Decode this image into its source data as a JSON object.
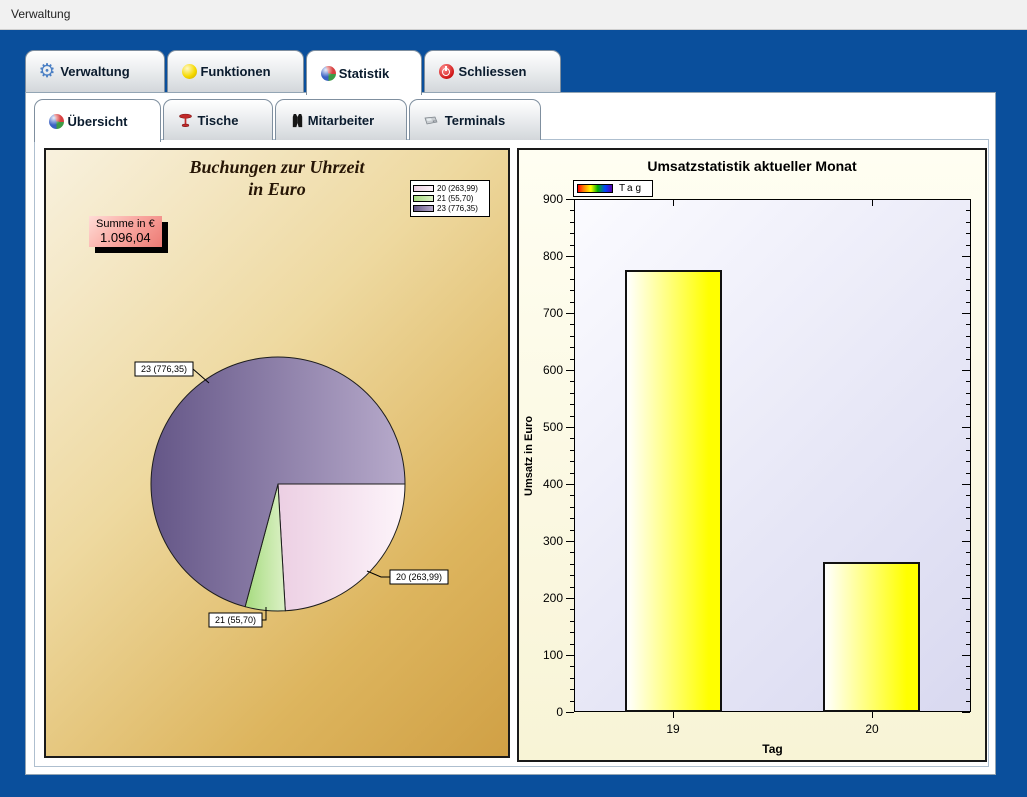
{
  "window": {
    "title": "Verwaltung"
  },
  "main_tabs": [
    {
      "label": "Verwaltung",
      "icon": "gear-icon",
      "active": false
    },
    {
      "label": "Funktionen",
      "icon": "ball-icon",
      "active": false
    },
    {
      "label": "Statistik",
      "icon": "pie-icon",
      "active": true
    },
    {
      "label": "Schliessen",
      "icon": "power-icon",
      "active": false
    }
  ],
  "sub_tabs": [
    {
      "label": "Übersicht",
      "icon": "pie-icon",
      "active": true
    },
    {
      "label": "Tische",
      "icon": "table-icon",
      "active": false
    },
    {
      "label": "Mitarbeiter",
      "icon": "vest-icon",
      "active": false
    },
    {
      "label": "Terminals",
      "icon": "terminal-icon",
      "active": false
    }
  ],
  "colors": {
    "window_blue": "#0a4f9c",
    "bar_fill_start": "#ffffff",
    "bar_fill_end": "#ffff00"
  },
  "chart_data": [
    {
      "type": "pie",
      "title_line1": "Buchungen zur Uhrzeit",
      "title_line2": "in Euro",
      "sum_label": "Summe in €",
      "sum_value": "1.096,04",
      "start_angle_deg": 0,
      "direction": "clockwise",
      "legend_position": "top-right",
      "slices": [
        {
          "category": "20",
          "value": 263.99,
          "label": "20 (263,99)",
          "color_start": "#eccfe3",
          "color_end": "#fdf4fa"
        },
        {
          "category": "21",
          "value": 55.7,
          "label": "21 (55,70)",
          "color_start": "#a6db7f",
          "color_end": "#dcf1c6"
        },
        {
          "category": "23",
          "value": 776.35,
          "label": "23 (776,35)",
          "color_start": "#645687",
          "color_end": "#b7aacb"
        }
      ]
    },
    {
      "type": "bar",
      "title": "Umsatzstatistik aktueller Monat",
      "legend": "Tag",
      "categories": [
        "19",
        "20"
      ],
      "values": [
        775,
        264
      ],
      "xlabel": "Tag",
      "ylabel": "Umsatz  in Euro",
      "ylim": [
        0,
        900
      ],
      "ytick_major": 100,
      "ytick_minor": 20,
      "grid": false
    }
  ]
}
